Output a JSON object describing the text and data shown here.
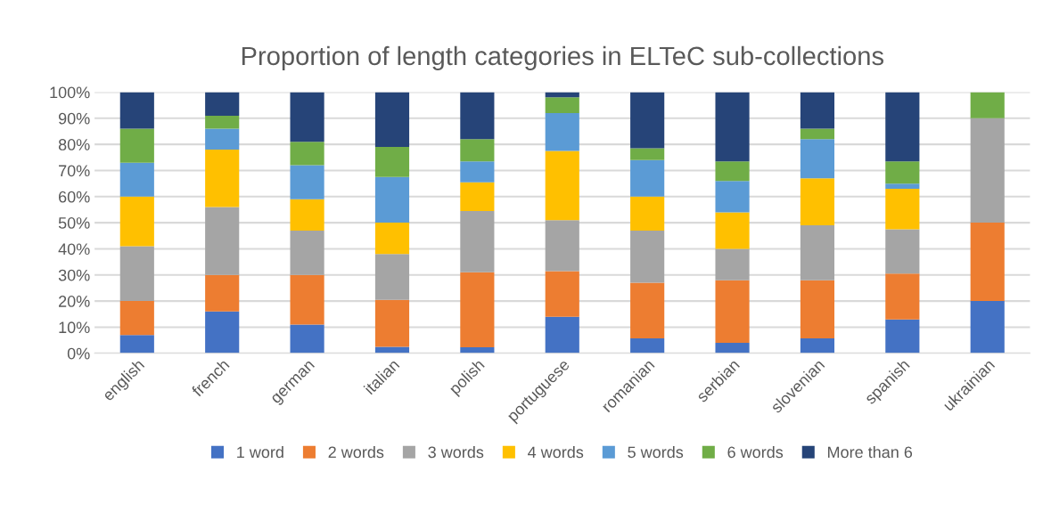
{
  "chart_data": {
    "type": "bar",
    "stacked": true,
    "title": "Proportion of length categories in ELTeC sub-collections",
    "categories": [
      "english",
      "french",
      "german",
      "italian",
      "polish",
      "portuguese",
      "romanian",
      "serbian",
      "slovenian",
      "spanish",
      "ukrainian"
    ],
    "series": [
      {
        "name": "1 word",
        "color": "#4472c4",
        "values": [
          7,
          16,
          11,
          2.5,
          2.3,
          14,
          5.7,
          4,
          5.7,
          13,
          20
        ]
      },
      {
        "name": "2 words",
        "color": "#ed7d31",
        "values": [
          13,
          14,
          19,
          18,
          28.7,
          17.5,
          21.3,
          24,
          22.3,
          17.5,
          30
        ]
      },
      {
        "name": "3 words",
        "color": "#a5a5a5",
        "values": [
          21,
          26,
          17,
          17.5,
          23.5,
          19.5,
          20,
          12,
          21,
          17,
          40
        ]
      },
      {
        "name": "4 words",
        "color": "#ffc000",
        "values": [
          19,
          22,
          12,
          12,
          11,
          26.5,
          13,
          14,
          18,
          15.5,
          0
        ]
      },
      {
        "name": "5 words",
        "color": "#5b9bd5",
        "values": [
          13,
          8,
          13,
          17.5,
          8,
          14.5,
          14,
          12,
          15,
          2,
          0
        ]
      },
      {
        "name": "6 words",
        "color": "#70ad47",
        "values": [
          13,
          5,
          9,
          11.5,
          8.5,
          6,
          4.5,
          7.5,
          4,
          8.5,
          10
        ]
      },
      {
        "name": "More than 6",
        "color": "#264478",
        "values": [
          14,
          9,
          19,
          21,
          18,
          2,
          21.5,
          26.5,
          14,
          26.5,
          0
        ]
      }
    ],
    "ylim": [
      0,
      100
    ],
    "yticks": [
      {
        "value": 0,
        "label": "0%"
      },
      {
        "value": 10,
        "label": "10%"
      },
      {
        "value": 20,
        "label": "20%"
      },
      {
        "value": 30,
        "label": "30%"
      },
      {
        "value": 40,
        "label": "40%"
      },
      {
        "value": 50,
        "label": "50%"
      },
      {
        "value": 60,
        "label": "60%"
      },
      {
        "value": 70,
        "label": "70%"
      },
      {
        "value": 80,
        "label": "80%"
      },
      {
        "value": 90,
        "label": "90%"
      },
      {
        "value": 100,
        "label": "100%"
      }
    ],
    "grid": "y",
    "legend": "bottom"
  }
}
